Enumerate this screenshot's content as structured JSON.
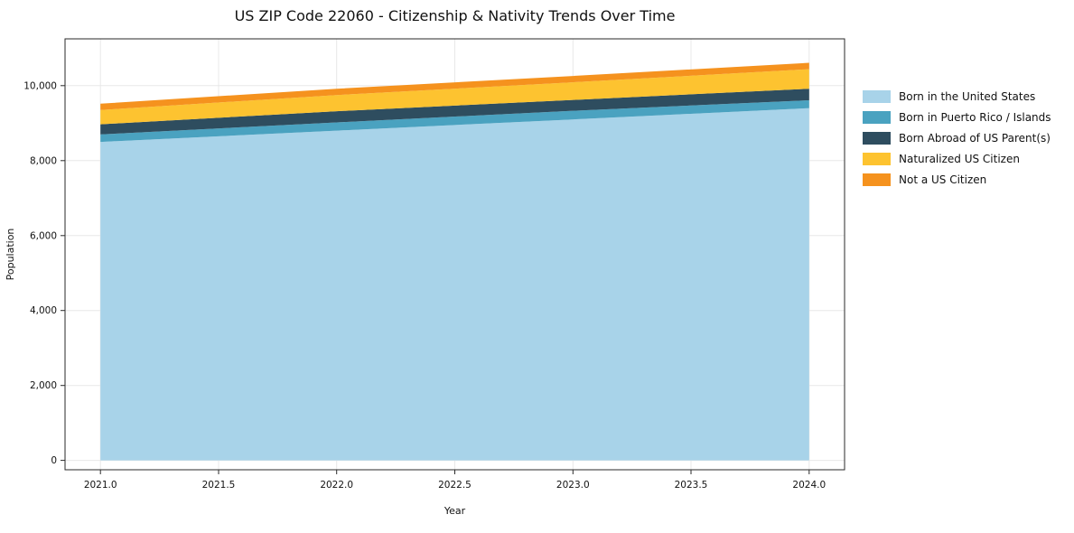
{
  "chart_data": {
    "type": "area",
    "stacked": true,
    "title": "US ZIP Code 22060 - Citizenship & Nativity Trends Over Time",
    "xlabel": "Year",
    "ylabel": "Population",
    "x": [
      2021,
      2022,
      2023,
      2024
    ],
    "xticks": [
      2021.0,
      2021.5,
      2022.0,
      2022.5,
      2023.0,
      2023.5,
      2024.0
    ],
    "xtick_labels": [
      "2021.0",
      "2021.5",
      "2022.0",
      "2022.5",
      "2023.0",
      "2023.5",
      "2024.0"
    ],
    "yticks": [
      0,
      2000,
      4000,
      6000,
      8000,
      10000
    ],
    "ytick_labels": [
      "0",
      "2,000",
      "4,000",
      "6,000",
      "8,000",
      "10,000"
    ],
    "xlim": [
      2020.85,
      2024.15
    ],
    "ylim": [
      -250,
      11250
    ],
    "grid": true,
    "legend_position": "right",
    "series": [
      {
        "name": "Born in the United States",
        "color": "#a8d3e9",
        "values": [
          8500,
          8800,
          9100,
          9400
        ]
      },
      {
        "name": "Born in Puerto Rico / Islands",
        "color": "#4aa2c0",
        "values": [
          200,
          220,
          230,
          210
        ]
      },
      {
        "name": "Born Abroad of US Parent(s)",
        "color": "#2e4d5f",
        "values": [
          270,
          300,
          290,
          310
        ]
      },
      {
        "name": "Naturalized US Citizen",
        "color": "#fdc330",
        "values": [
          380,
          430,
          470,
          520
        ]
      },
      {
        "name": "Not a US Citizen",
        "color": "#f5921e",
        "values": [
          170,
          170,
          170,
          170
        ]
      }
    ]
  }
}
